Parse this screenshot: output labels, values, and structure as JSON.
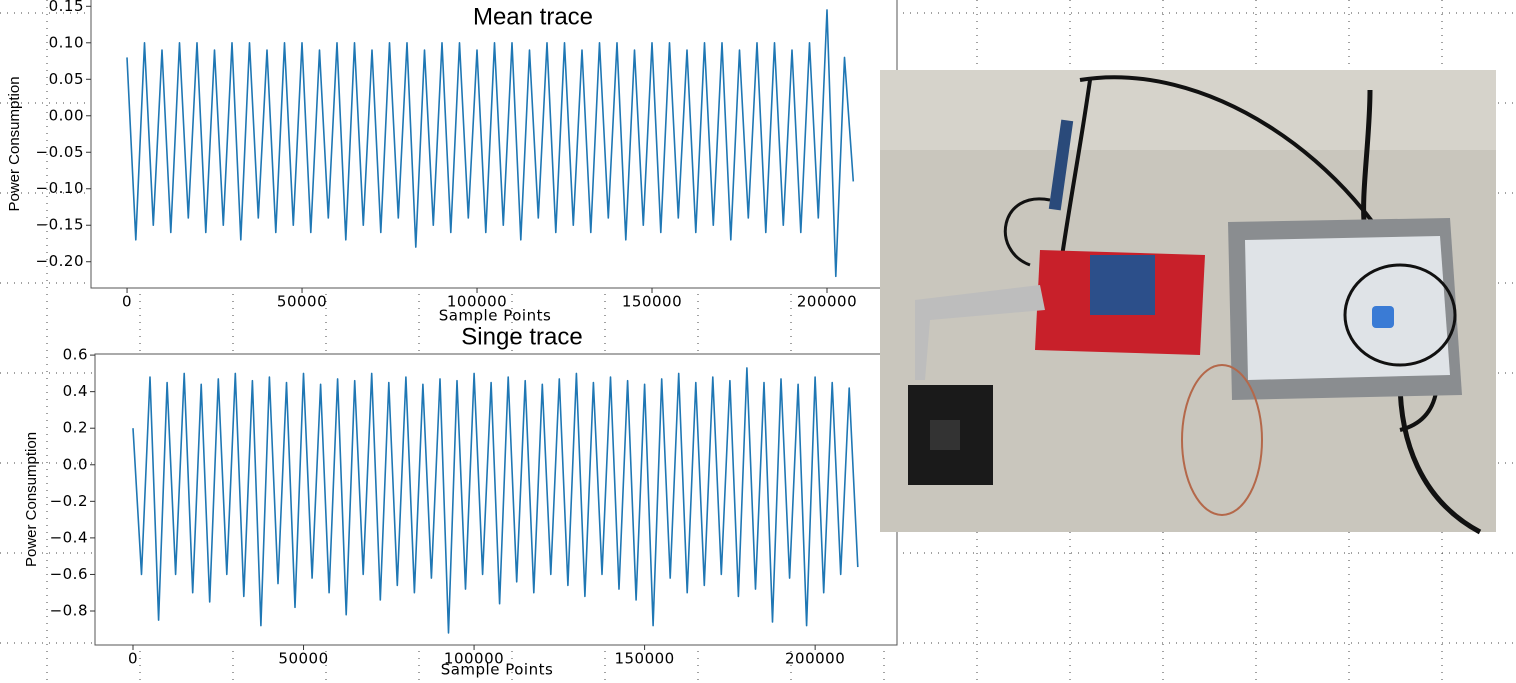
{
  "chart_data": [
    {
      "type": "line",
      "title": "Mean trace",
      "x_label": "Sample Points",
      "y_label": "Power Consumption",
      "color": "#1f77b4",
      "xlim": [
        -10300,
        220000
      ],
      "ylim": [
        -0.236,
        0.16
      ],
      "xticks": [
        0,
        50000,
        100000,
        150000,
        200000
      ],
      "yticks": [
        0.15,
        {
          "value": 0.1,
          "label": "0.10"
        },
        0.05,
        {
          "value": 0,
          "label": "0.00"
        },
        {
          "value": -0.05,
          "label": "−0.05"
        },
        {
          "value": -0.1,
          "label": "−0.10"
        },
        {
          "value": -0.15,
          "label": "−0.15"
        },
        {
          "value": -0.2,
          "label": "−0.20"
        }
      ],
      "x": [
        0,
        2500,
        5000,
        7500,
        10000,
        12500,
        15000,
        17500,
        20000,
        22500,
        25000,
        27500,
        30000,
        32500,
        35000,
        37500,
        40000,
        42500,
        45000,
        47500,
        50000,
        52500,
        55000,
        57500,
        60000,
        62500,
        65000,
        67500,
        70000,
        72500,
        75000,
        77500,
        80000,
        82500,
        85000,
        87500,
        90000,
        92500,
        95000,
        97500,
        100000,
        102500,
        105000,
        107500,
        110000,
        112500,
        115000,
        117500,
        120000,
        122500,
        125000,
        127500,
        130000,
        132500,
        135000,
        137500,
        140000,
        142500,
        145000,
        147500,
        150000,
        152500,
        155000,
        157500,
        160000,
        162500,
        165000,
        167500,
        170000,
        172500,
        175000,
        177500,
        180000,
        182500,
        185000,
        187500,
        190000,
        192500,
        195000,
        197500,
        200000,
        202500,
        205000,
        207500
      ],
      "values": [
        0.08,
        -0.17,
        0.1,
        -0.15,
        0.09,
        -0.16,
        0.1,
        -0.14,
        0.1,
        -0.16,
        0.09,
        -0.15,
        0.1,
        -0.17,
        0.1,
        -0.14,
        0.09,
        -0.16,
        0.1,
        -0.15,
        0.1,
        -0.16,
        0.09,
        -0.14,
        0.1,
        -0.17,
        0.1,
        -0.15,
        0.09,
        -0.16,
        0.1,
        -0.14,
        0.1,
        -0.18,
        0.09,
        -0.15,
        0.1,
        -0.16,
        0.1,
        -0.14,
        0.09,
        -0.16,
        0.1,
        -0.15,
        0.1,
        -0.17,
        0.09,
        -0.14,
        0.1,
        -0.16,
        0.1,
        -0.15,
        0.09,
        -0.16,
        0.1,
        -0.14,
        0.1,
        -0.17,
        0.09,
        -0.15,
        0.1,
        -0.16,
        0.1,
        -0.14,
        0.09,
        -0.16,
        0.1,
        -0.15,
        0.1,
        -0.17,
        0.09,
        -0.14,
        0.1,
        -0.16,
        0.1,
        -0.15,
        0.09,
        -0.16,
        0.1,
        -0.14,
        0.145,
        -0.22,
        0.08,
        -0.09
      ]
    },
    {
      "type": "line",
      "title": "Singe trace",
      "x_label": "Sample Points",
      "y_label": "Power Consumption",
      "color": "#1f77b4",
      "xlim": [
        -11140,
        224000
      ],
      "ylim": [
        -0.986,
        0.606
      ],
      "xticks": [
        0,
        50000,
        100000,
        150000,
        200000
      ],
      "yticks": [
        0.6,
        0.4,
        0.2,
        {
          "value": 0,
          "label": "0.0"
        },
        {
          "value": -0.2,
          "label": "−0.2"
        },
        {
          "value": -0.4,
          "label": "−0.4"
        },
        {
          "value": -0.6,
          "label": "−0.6"
        },
        {
          "value": -0.8,
          "label": "−0.8"
        }
      ],
      "x": [
        0,
        2500,
        5000,
        7500,
        10000,
        12500,
        15000,
        17500,
        20000,
        22500,
        25000,
        27500,
        30000,
        32500,
        35000,
        37500,
        40000,
        42500,
        45000,
        47500,
        50000,
        52500,
        55000,
        57500,
        60000,
        62500,
        65000,
        67500,
        70000,
        72500,
        75000,
        77500,
        80000,
        82500,
        85000,
        87500,
        90000,
        92500,
        95000,
        97500,
        100000,
        102500,
        105000,
        107500,
        110000,
        112500,
        115000,
        117500,
        120000,
        122500,
        125000,
        127500,
        130000,
        132500,
        135000,
        137500,
        140000,
        142500,
        145000,
        147500,
        150000,
        152500,
        155000,
        157500,
        160000,
        162500,
        165000,
        167500,
        170000,
        172500,
        175000,
        177500,
        180000,
        182500,
        185000,
        187500,
        190000,
        192500,
        195000,
        197500,
        200000,
        202500,
        205000,
        207500,
        210000,
        212500
      ],
      "values": [
        0.2,
        -0.6,
        0.48,
        -0.85,
        0.45,
        -0.6,
        0.5,
        -0.7,
        0.44,
        -0.75,
        0.47,
        -0.6,
        0.5,
        -0.72,
        0.46,
        -0.88,
        0.48,
        -0.65,
        0.45,
        -0.78,
        0.5,
        -0.62,
        0.44,
        -0.7,
        0.47,
        -0.82,
        0.46,
        -0.6,
        0.5,
        -0.74,
        0.45,
        -0.66,
        0.48,
        -0.7,
        0.44,
        -0.62,
        0.47,
        -0.92,
        0.46,
        -0.68,
        0.5,
        -0.6,
        0.45,
        -0.76,
        0.48,
        -0.64,
        0.46,
        -0.7,
        0.44,
        -0.6,
        0.47,
        -0.66,
        0.5,
        -0.72,
        0.45,
        -0.6,
        0.48,
        -0.68,
        0.46,
        -0.74,
        0.44,
        -0.88,
        0.47,
        -0.62,
        0.5,
        -0.7,
        0.45,
        -0.66,
        0.48,
        -0.6,
        0.46,
        -0.72,
        0.53,
        -0.68,
        0.45,
        -0.86,
        0.47,
        -0.62,
        0.44,
        -0.88,
        0.48,
        -0.7,
        0.45,
        -0.6,
        0.42,
        -0.56
      ]
    }
  ]
}
